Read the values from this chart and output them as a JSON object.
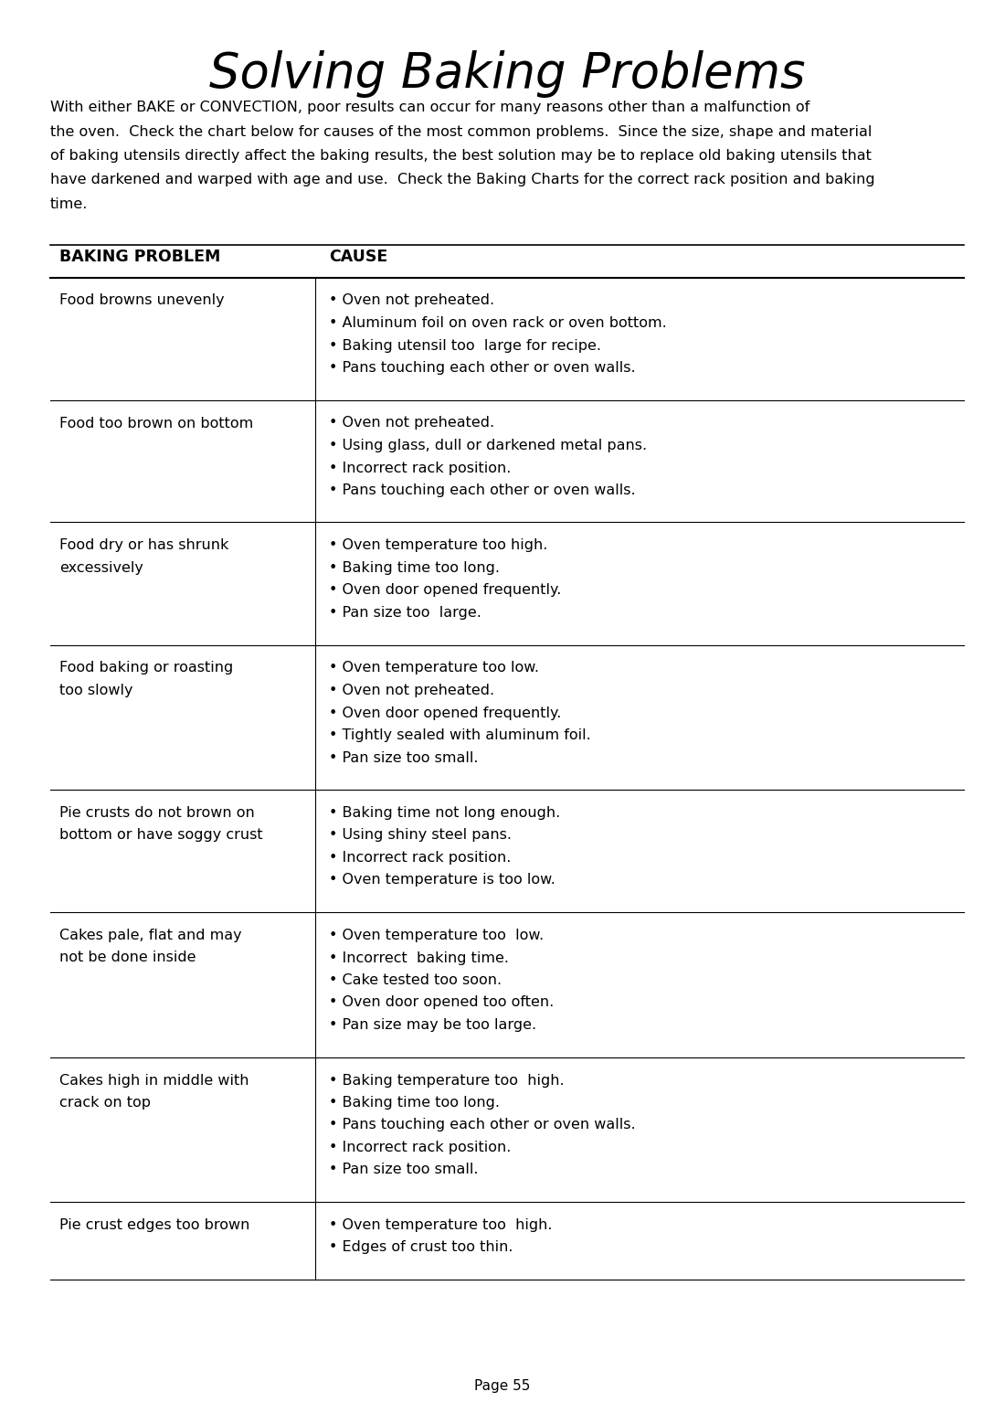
{
  "title": "Solving Baking Problems",
  "background_color": "#ffffff",
  "col1_header": "BAKING PROBLEM",
  "col2_header": "CAUSE",
  "page_number": "Page 55",
  "intro_lines": [
    "With either BAKE or CONVECTION, poor results can occur for many reasons other than a malfunction of",
    "the oven.  Check the chart below for causes of the most common problems.  Since the size, shape and material",
    "of baking utensils directly affect the baking results, the best solution may be to replace old baking utensils that",
    "have darkened and warped with age and use.  Check the Baking Charts for the correct rack position and baking",
    "time."
  ],
  "rows": [
    {
      "problem": [
        "Food browns unevenly"
      ],
      "causes": [
        "• Oven not preheated.",
        "• Aluminum foil on oven rack or oven bottom.",
        "• Baking utensil too  large for recipe.",
        "• Pans touching each other or oven walls."
      ]
    },
    {
      "problem": [
        "Food too brown on bottom"
      ],
      "causes": [
        "• Oven not preheated.",
        "• Using glass, dull or darkened metal pans.",
        "• Incorrect rack position.",
        "• Pans touching each other or oven walls."
      ]
    },
    {
      "problem": [
        "Food dry or has shrunk",
        "excessively"
      ],
      "causes": [
        "• Oven temperature too high.",
        "• Baking time too long.",
        "• Oven door opened frequently.",
        "• Pan size too  large."
      ]
    },
    {
      "problem": [
        "Food baking or roasting",
        "too slowly"
      ],
      "causes": [
        "• Oven temperature too low.",
        "• Oven not preheated.",
        "• Oven door opened frequently.",
        "• Tightly sealed with aluminum foil.",
        "• Pan size too small."
      ]
    },
    {
      "problem": [
        "Pie crusts do not brown on",
        "bottom or have soggy crust"
      ],
      "causes": [
        "• Baking time not long enough.",
        "• Using shiny steel pans.",
        "• Incorrect rack position.",
        "• Oven temperature is too low."
      ]
    },
    {
      "problem": [
        "Cakes pale, flat and may",
        "not be done inside"
      ],
      "causes": [
        "• Oven temperature too  low.",
        "• Incorrect  baking time.",
        "• Cake tested too soon.",
        "• Oven door opened too often.",
        "• Pan size may be too large."
      ]
    },
    {
      "problem": [
        "Cakes high in middle with",
        "crack on top"
      ],
      "causes": [
        "• Baking temperature too  high.",
        "• Baking time too long.",
        "• Pans touching each other or oven walls.",
        "• Incorrect rack position.",
        "• Pan size too small."
      ]
    },
    {
      "problem": [
        "Pie crust edges too brown"
      ],
      "causes": [
        "• Oven temperature too  high.",
        "• Edges of crust too thin."
      ]
    }
  ]
}
